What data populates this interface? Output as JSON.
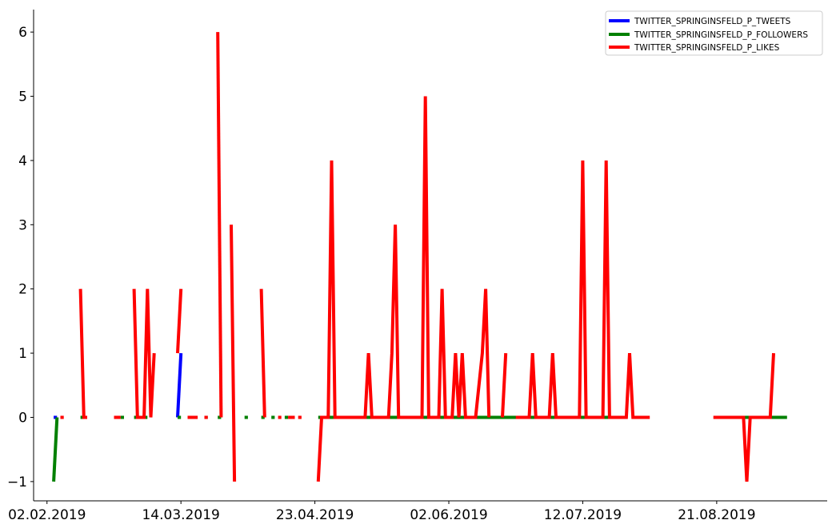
{
  "chart_data": {
    "type": "line",
    "title": "",
    "xlabel": "",
    "ylabel": "",
    "x_range": [
      "2019-01-29",
      "2019-09-23"
    ],
    "ylim": [
      -1.3,
      6.35
    ],
    "grid": false,
    "legend_position": "top-right",
    "x_ticks": [
      "02.02.2019",
      "14.03.2019",
      "23.04.2019",
      "02.06.2019",
      "12.07.2019",
      "21.08.2019"
    ],
    "y_ticks": [
      "−1",
      "0",
      "1",
      "2",
      "3",
      "4",
      "5",
      "6"
    ],
    "y_tick_values": [
      -1,
      0,
      1,
      2,
      3,
      4,
      5,
      6
    ],
    "series": [
      {
        "name": "TWITTER_SPRINGINSFELD_P_TWEETS",
        "color": "#0000ff",
        "segments": [
          [
            [
              "2019-02-04",
              0
            ],
            [
              "2019-02-05",
              0
            ]
          ],
          [
            [
              "2019-03-13",
              0
            ],
            [
              "2019-03-14",
              1
            ]
          ]
        ]
      },
      {
        "name": "TWITTER_SPRINGINSFELD_P_FOLLOWERS",
        "color": "#008000",
        "segments": [
          [
            [
              "2019-02-04",
              -1
            ],
            [
              "2019-02-05",
              0
            ]
          ],
          [
            [
              "2019-02-12",
              0
            ],
            [
              "2019-02-13",
              0
            ]
          ],
          [
            [
              "2019-02-24",
              0
            ],
            [
              "2019-02-25",
              0
            ]
          ],
          [
            [
              "2019-02-28",
              0
            ],
            [
              "2019-03-04",
              0
            ]
          ],
          [
            [
              "2019-03-13",
              0
            ],
            [
              "2019-03-14",
              0
            ]
          ],
          [
            [
              "2019-03-17",
              0
            ],
            [
              "2019-03-18",
              0
            ]
          ],
          [
            [
              "2019-03-21",
              0
            ],
            [
              "2019-03-22",
              0
            ]
          ],
          [
            [
              "2019-03-25",
              0
            ],
            [
              "2019-03-26",
              0
            ]
          ],
          [
            [
              "2019-04-02",
              0
            ],
            [
              "2019-04-03",
              0
            ]
          ],
          [
            [
              "2019-04-07",
              0
            ],
            [
              "2019-04-08",
              0
            ]
          ],
          [
            [
              "2019-04-10",
              0
            ],
            [
              "2019-04-11",
              0
            ]
          ],
          [
            [
              "2019-04-14",
              0
            ],
            [
              "2019-04-15",
              0
            ]
          ],
          [
            [
              "2019-04-24",
              0
            ],
            [
              "2019-07-24",
              0
            ]
          ],
          [
            [
              "2019-08-26",
              0
            ],
            [
              "2019-09-11",
              0
            ]
          ]
        ]
      },
      {
        "name": "TWITTER_SPRINGINSFELD_P_LIKES",
        "color": "#ff0000",
        "segments": [
          [
            [
              "2019-02-06",
              0
            ],
            [
              "2019-02-07",
              0
            ]
          ],
          [
            [
              "2019-02-12",
              2
            ],
            [
              "2019-02-13",
              0
            ],
            [
              "2019-02-14",
              0
            ]
          ],
          [
            [
              "2019-02-22",
              0
            ],
            [
              "2019-02-24",
              0
            ]
          ],
          [
            [
              "2019-02-28",
              2
            ],
            [
              "2019-03-01",
              0
            ],
            [
              "2019-03-03",
              0
            ],
            [
              "2019-03-04",
              2
            ],
            [
              "2019-03-05",
              0
            ],
            [
              "2019-03-06",
              1
            ]
          ],
          [
            [
              "2019-03-13",
              1
            ],
            [
              "2019-03-14",
              2
            ]
          ],
          [
            [
              "2019-03-16",
              0
            ],
            [
              "2019-03-19",
              0
            ]
          ],
          [
            [
              "2019-03-21",
              0
            ],
            [
              "2019-03-22",
              0
            ]
          ],
          [
            [
              "2019-03-25",
              6
            ],
            [
              "2019-03-26",
              0
            ]
          ],
          [
            [
              "2019-03-29",
              3
            ],
            [
              "2019-03-30",
              -1
            ]
          ],
          [
            [
              "2019-04-07",
              2
            ],
            [
              "2019-04-08",
              0
            ]
          ],
          [
            [
              "2019-04-12",
              0
            ],
            [
              "2019-04-13",
              0
            ]
          ],
          [
            [
              "2019-04-15",
              0
            ],
            [
              "2019-04-17",
              0
            ]
          ],
          [
            [
              "2019-04-18",
              0
            ],
            [
              "2019-04-19",
              0
            ]
          ],
          [
            [
              "2019-04-24",
              -1
            ],
            [
              "2019-04-25",
              0
            ],
            [
              "2019-04-27",
              0
            ],
            [
              "2019-04-28",
              4
            ],
            [
              "2019-04-29",
              0
            ],
            [
              "2019-05-08",
              0
            ],
            [
              "2019-05-09",
              1
            ],
            [
              "2019-05-10",
              0
            ],
            [
              "2019-05-15",
              0
            ],
            [
              "2019-05-16",
              1
            ],
            [
              "2019-05-17",
              3
            ],
            [
              "2019-05-18",
              0
            ],
            [
              "2019-05-25",
              0
            ],
            [
              "2019-05-26",
              5
            ],
            [
              "2019-05-27",
              0
            ],
            [
              "2019-05-30",
              0
            ],
            [
              "2019-05-31",
              2
            ],
            [
              "2019-06-01",
              0
            ],
            [
              "2019-06-03",
              0
            ],
            [
              "2019-06-04",
              1
            ],
            [
              "2019-06-05",
              0
            ],
            [
              "2019-06-06",
              1
            ],
            [
              "2019-06-07",
              0
            ],
            [
              "2019-06-10",
              0
            ],
            [
              "2019-06-12",
              1
            ],
            [
              "2019-06-13",
              2
            ],
            [
              "2019-06-14",
              0
            ]
          ],
          [
            [
              "2019-06-18",
              0
            ],
            [
              "2019-06-19",
              1
            ]
          ],
          [
            [
              "2019-06-22",
              0
            ],
            [
              "2019-06-26",
              0
            ],
            [
              "2019-06-27",
              1
            ],
            [
              "2019-06-28",
              0
            ],
            [
              "2019-07-02",
              0
            ],
            [
              "2019-07-03",
              1
            ],
            [
              "2019-07-04",
              0
            ],
            [
              "2019-07-11",
              0
            ],
            [
              "2019-07-12",
              4
            ],
            [
              "2019-07-13",
              0
            ],
            [
              "2019-07-18",
              0
            ],
            [
              "2019-07-19",
              4
            ],
            [
              "2019-07-20",
              0
            ],
            [
              "2019-07-25",
              0
            ],
            [
              "2019-07-26",
              1
            ],
            [
              "2019-07-27",
              0
            ],
            [
              "2019-08-01",
              0
            ]
          ],
          [
            [
              "2019-08-20",
              0
            ],
            [
              "2019-08-29",
              0
            ],
            [
              "2019-08-30",
              -1
            ],
            [
              "2019-08-31",
              0
            ],
            [
              "2019-09-06",
              0
            ],
            [
              "2019-09-07",
              1
            ]
          ]
        ]
      }
    ]
  }
}
